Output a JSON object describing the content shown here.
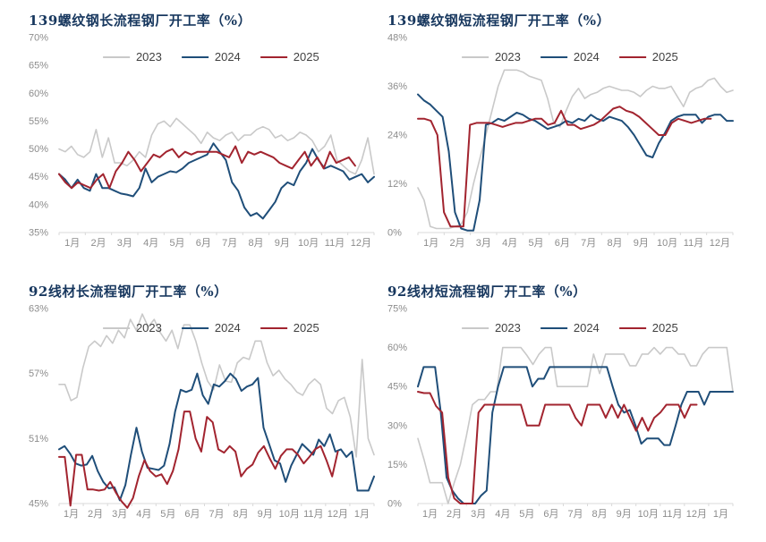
{
  "colors": {
    "title": "#17375e",
    "axis_text": "#8c8c8c",
    "axis_line": "#d9d9d9"
  },
  "chart_data": [
    {
      "type": "line",
      "title": "139螺纹钢长流程钢厂开工率（%）",
      "legend_position": "top-center",
      "grid": false,
      "x_axis": {
        "months": 12,
        "labels": [
          "1月",
          "2月",
          "3月",
          "4月",
          "5月",
          "6月",
          "7月",
          "8月",
          "9月",
          "10月",
          "11月",
          "12月"
        ]
      },
      "y_axis": {
        "min": 35,
        "max": 70,
        "step": 5,
        "tick_labels": [
          "70%",
          "65%",
          "60%",
          "55%",
          "50%",
          "45%",
          "40%",
          "35%"
        ]
      },
      "series": [
        {
          "name": "2023",
          "color": "#c9c9c9",
          "x_span": 1.0,
          "values": [
            50,
            49.5,
            50.5,
            49,
            48.5,
            49.5,
            53.5,
            48.5,
            52,
            47.5,
            47.5,
            47,
            48,
            49.5,
            48.5,
            52.5,
            54.5,
            55,
            54,
            55.5,
            54.5,
            53.5,
            52.5,
            51,
            53,
            52,
            51.5,
            52.5,
            53,
            51.5,
            52.5,
            52.5,
            53.5,
            54,
            53.5,
            52,
            52.5,
            51.5,
            52,
            53,
            52.5,
            51.5,
            49.5,
            50.5,
            52.5,
            48,
            47,
            46,
            45.5,
            48,
            52,
            45.5
          ]
        },
        {
          "name": "2024",
          "color": "#1f4e79",
          "x_span": 1.0,
          "values": [
            45.5,
            44.5,
            43,
            44.5,
            43,
            42.5,
            45.5,
            43,
            43,
            42.5,
            42,
            41.8,
            41.5,
            43,
            46.5,
            44,
            45,
            45.5,
            46,
            45.8,
            46.5,
            47.5,
            48,
            48.5,
            49,
            51,
            49.5,
            48,
            44,
            42.5,
            39.5,
            38,
            38.5,
            37.5,
            39,
            40.5,
            43,
            44,
            43.5,
            46,
            47.5,
            50,
            48,
            46.5,
            47,
            46.5,
            46,
            44.5,
            45,
            45.5,
            44,
            45
          ]
        },
        {
          "name": "2025",
          "color": "#a2242f",
          "x_span": 0.94,
          "values": [
            45.5,
            44,
            43,
            44,
            43.5,
            43,
            44.5,
            45.5,
            43,
            46,
            47.5,
            49.5,
            48,
            46,
            47.5,
            49,
            48.5,
            49.5,
            50,
            48.5,
            49.5,
            49,
            49.5,
            49.5,
            49.5,
            49.5,
            49,
            48.5,
            50.5,
            47.5,
            49.5,
            49,
            49.5,
            49,
            48.5,
            47.5,
            47,
            46.5,
            48,
            49.5,
            47,
            48.5,
            46.5,
            49.5,
            47.5,
            48,
            48.5,
            47
          ]
        }
      ]
    },
    {
      "type": "line",
      "title": "139螺纹钢短流程钢厂开工率（%）",
      "legend_position": "top-center",
      "grid": false,
      "x_axis": {
        "months": 12,
        "labels": [
          "1月",
          "2月",
          "3月",
          "4月",
          "5月",
          "6月",
          "7月",
          "8月",
          "9月",
          "10月",
          "11月",
          "12月"
        ]
      },
      "y_axis": {
        "min": 0,
        "max": 48,
        "step": 12,
        "tick_labels": [
          "48%",
          "36%",
          "24%",
          "12%",
          "0%"
        ]
      },
      "series": [
        {
          "name": "2023",
          "color": "#c9c9c9",
          "x_span": 1.0,
          "values": [
            11,
            8,
            1.5,
            1,
            1,
            1,
            1.5,
            2,
            5,
            12,
            18,
            24,
            30,
            36,
            40,
            40,
            40,
            39.5,
            38.5,
            38,
            37.5,
            33,
            27,
            26,
            30,
            33.5,
            35.5,
            33,
            34,
            34.5,
            35.5,
            36,
            35.5,
            35,
            35,
            34.5,
            33.5,
            35,
            36,
            35.5,
            35.5,
            36,
            33.5,
            31,
            34.5,
            35.5,
            36,
            37.5,
            38,
            36,
            34.5,
            35
          ]
        },
        {
          "name": "2024",
          "color": "#1f4e79",
          "x_span": 1.0,
          "values": [
            34,
            32.5,
            31.5,
            30,
            28.5,
            20,
            5,
            1,
            0.5,
            0.5,
            8,
            26.5,
            27,
            28,
            27.5,
            28.5,
            29.5,
            29,
            28,
            27.5,
            26.5,
            25.5,
            26,
            26.5,
            27.5,
            27,
            28,
            27.5,
            29,
            28,
            27.5,
            28.5,
            28,
            27.5,
            26,
            24,
            21.5,
            19,
            18.5,
            22,
            24.5,
            27.5,
            28.5,
            29,
            29,
            29,
            27,
            28.5,
            29,
            29,
            27.5,
            27.5
          ]
        },
        {
          "name": "2025",
          "color": "#a2242f",
          "x_span": 0.93,
          "values": [
            28,
            28,
            27.5,
            24,
            5,
            1.5,
            1.5,
            1.5,
            26.5,
            27,
            27,
            27,
            26.5,
            26,
            26.5,
            27,
            27,
            27.5,
            28,
            28,
            26.5,
            27,
            30,
            26.5,
            26.5,
            25.5,
            26,
            26.5,
            27.5,
            29,
            30.5,
            31,
            30,
            29.5,
            28.5,
            27,
            25.5,
            24,
            24,
            27,
            28,
            27.5,
            27,
            27.5,
            28,
            28
          ]
        }
      ]
    },
    {
      "type": "line",
      "title": "92线材长流程钢厂开工率（%）",
      "legend_position": "top-center",
      "grid": false,
      "x_axis": {
        "months": 13,
        "labels": [
          "1月",
          "2月",
          "3月",
          "4月",
          "5月",
          "6月",
          "7月",
          "8月",
          "9月",
          "10月",
          "11月",
          "12月",
          "1月"
        ]
      },
      "y_axis": {
        "min": 45,
        "max": 63,
        "step": 6,
        "tick_labels": [
          "63%",
          "57%",
          "51%",
          "45%"
        ]
      },
      "series": [
        {
          "name": "2023",
          "color": "#c9c9c9",
          "x_span": 1.0,
          "values": [
            56,
            56,
            54.5,
            54.8,
            57.5,
            59.5,
            60,
            59.5,
            60.5,
            59.8,
            61,
            60.3,
            62,
            61,
            62.5,
            61.3,
            62,
            60.8,
            60,
            61,
            59.3,
            61.5,
            61.5,
            60,
            58,
            56.3,
            55.5,
            57.8,
            56.3,
            56.2,
            58,
            58.5,
            58.3,
            60,
            60,
            58,
            56.8,
            57.3,
            56.5,
            56,
            55.3,
            55,
            56,
            56.5,
            56,
            53.8,
            53.3,
            54.5,
            54.8,
            53,
            49.3,
            58.3,
            51,
            49.5
          ]
        },
        {
          "name": "2024",
          "color": "#1f4e79",
          "x_span": 1.0,
          "values": [
            50,
            50.3,
            49.6,
            48.7,
            48.5,
            48.6,
            49.4,
            48,
            47,
            46.4,
            46.5,
            45.3,
            46.7,
            49.5,
            52,
            49.8,
            48.3,
            48.2,
            48.1,
            48.5,
            50.5,
            53.5,
            55.5,
            55.3,
            55.5,
            57,
            55,
            54.2,
            56,
            55.8,
            56.3,
            57,
            56.5,
            55.4,
            55.8,
            56,
            56.6,
            52,
            50.5,
            49,
            48.7,
            47,
            48.5,
            49.5,
            50.5,
            50,
            49.5,
            50.9,
            50.3,
            51.4,
            49.8,
            50,
            49.3,
            49.8,
            46.2,
            46.2,
            46.2,
            47.5
          ]
        },
        {
          "name": "2025",
          "color": "#a2242f",
          "x_span": 0.885,
          "values": [
            49.3,
            49.3,
            44.8,
            49.5,
            49.5,
            46.3,
            46.3,
            46.2,
            46.3,
            47,
            46,
            45.2,
            44.6,
            45.5,
            47.5,
            49,
            48,
            47.5,
            47.7,
            46.8,
            48,
            50,
            53.5,
            53.5,
            51,
            49.8,
            53,
            52.5,
            50,
            49.7,
            50.3,
            49.8,
            47.5,
            48.2,
            48.6,
            49.7,
            50.3,
            49.2,
            48.2,
            49.4,
            50,
            50,
            49.5,
            48.7,
            49.3,
            50,
            50.3,
            49,
            47.5,
            49.8
          ]
        }
      ]
    },
    {
      "type": "line",
      "title": "92线材短流程钢厂开工率（%）",
      "legend_position": "top-center",
      "grid": false,
      "x_axis": {
        "months": 13,
        "labels": [
          "1月",
          "2月",
          "3月",
          "4月",
          "5月",
          "6月",
          "7月",
          "8月",
          "9月",
          "10月",
          "11月",
          "12月",
          "1月"
        ]
      },
      "y_axis": {
        "min": 0,
        "max": 75,
        "step": 15,
        "tick_labels": [
          "75%",
          "60%",
          "45%",
          "30%",
          "15%",
          "0%"
        ]
      },
      "series": [
        {
          "name": "2023",
          "color": "#c9c9c9",
          "x_span": 1.0,
          "values": [
            25,
            17,
            8,
            8,
            8,
            0,
            8,
            15,
            26,
            38,
            40,
            40,
            43,
            43,
            60,
            60,
            60,
            60,
            57,
            53.5,
            57.5,
            60,
            60,
            45,
            45,
            45,
            45,
            45,
            45,
            57.5,
            50,
            57.5,
            57.5,
            57.5,
            57.5,
            53,
            53,
            57.5,
            57.5,
            60,
            57.5,
            60,
            60,
            57.5,
            57.5,
            53,
            53,
            57.5,
            60,
            60,
            60,
            60,
            43
          ]
        },
        {
          "name": "2024",
          "color": "#1f4e79",
          "x_span": 1.0,
          "values": [
            45,
            52.5,
            52.5,
            52.5,
            35,
            10,
            5,
            2,
            0,
            0,
            0,
            3,
            5,
            35,
            45,
            52.5,
            52.5,
            52.5,
            52.5,
            52.5,
            45,
            48,
            48,
            52.5,
            52.5,
            52.5,
            52.5,
            52.5,
            52.5,
            52.5,
            52.5,
            52.5,
            52.5,
            52.5,
            45,
            38,
            35,
            36,
            30,
            23,
            25,
            25,
            25,
            22.5,
            22.5,
            30,
            38,
            43,
            43,
            43,
            38,
            43,
            43,
            43,
            43,
            43
          ]
        },
        {
          "name": "2025",
          "color": "#a2242f",
          "x_span": 0.885,
          "values": [
            43,
            42.5,
            42.5,
            37.5,
            35,
            10,
            2,
            0,
            0,
            0,
            35,
            38,
            38,
            38,
            38,
            38,
            38,
            38,
            30,
            30,
            30,
            38,
            38,
            38,
            38,
            38,
            33,
            30,
            38,
            38,
            38,
            33,
            38,
            33,
            38,
            33,
            28,
            33,
            28,
            33,
            35,
            38,
            38,
            38,
            33,
            38,
            38
          ]
        }
      ]
    }
  ]
}
